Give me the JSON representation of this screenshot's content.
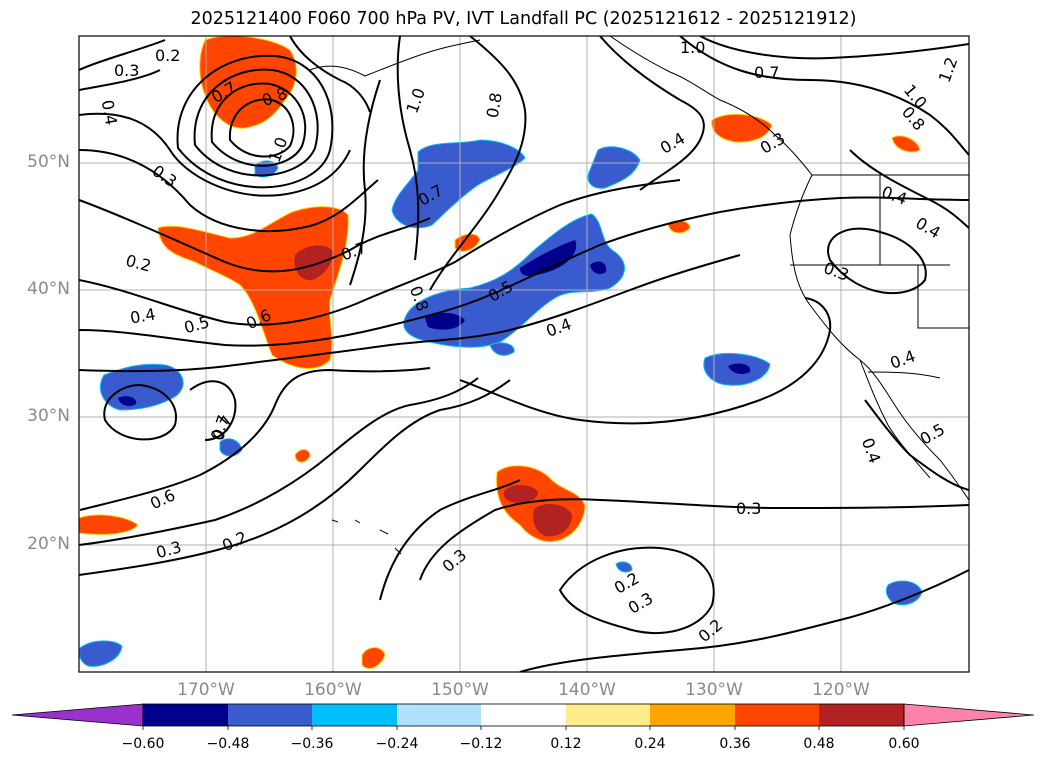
{
  "title": "2025121400 F060 700 hPa PV, IVT Landfall PC (2025121612 - 2025121912)",
  "map": {
    "lat_labels": [
      "50°N",
      "40°N",
      "30°N",
      "20°N"
    ],
    "lon_labels": [
      "170°W",
      "160°W",
      "150°W",
      "140°W",
      "130°W",
      "120°W"
    ],
    "contour_labels": [
      "0.2",
      "0.3",
      "0.4",
      "0.7",
      "0.8",
      "1.0",
      "0.3",
      "0.2",
      "0.4",
      "0.5",
      "0.6",
      "0.7",
      "0.7",
      "1.0",
      "0.8",
      "0.7",
      "0.8",
      "0.5",
      "0.4",
      "0.4",
      "0.7",
      "1.0",
      "1.0",
      "0.8",
      "1.2",
      "0.3",
      "0.4",
      "0.4",
      "0.3",
      "0.4",
      "0.4",
      "0.5",
      "0.7",
      "0.6",
      "0.3",
      "0.2",
      "0.3",
      "0.3",
      "0.2",
      "0.3",
      "0.2"
    ],
    "colors": {
      "land_border": "#000000",
      "grid": "#b0b0b0",
      "contour": "#000000"
    }
  },
  "colorbar": {
    "ticks": [
      "−0.60",
      "−0.48",
      "−0.36",
      "−0.24",
      "−0.12",
      "0.12",
      "0.24",
      "0.36",
      "0.48",
      "0.60"
    ],
    "colors": [
      "#9932cc",
      "#00008b",
      "#3a5bcd",
      "#00bfff",
      "#b0e2ff",
      "#ffffff",
      "#ffec8b",
      "#ffa500",
      "#ff4500",
      "#b22222",
      "#ff82ab"
    ]
  }
}
